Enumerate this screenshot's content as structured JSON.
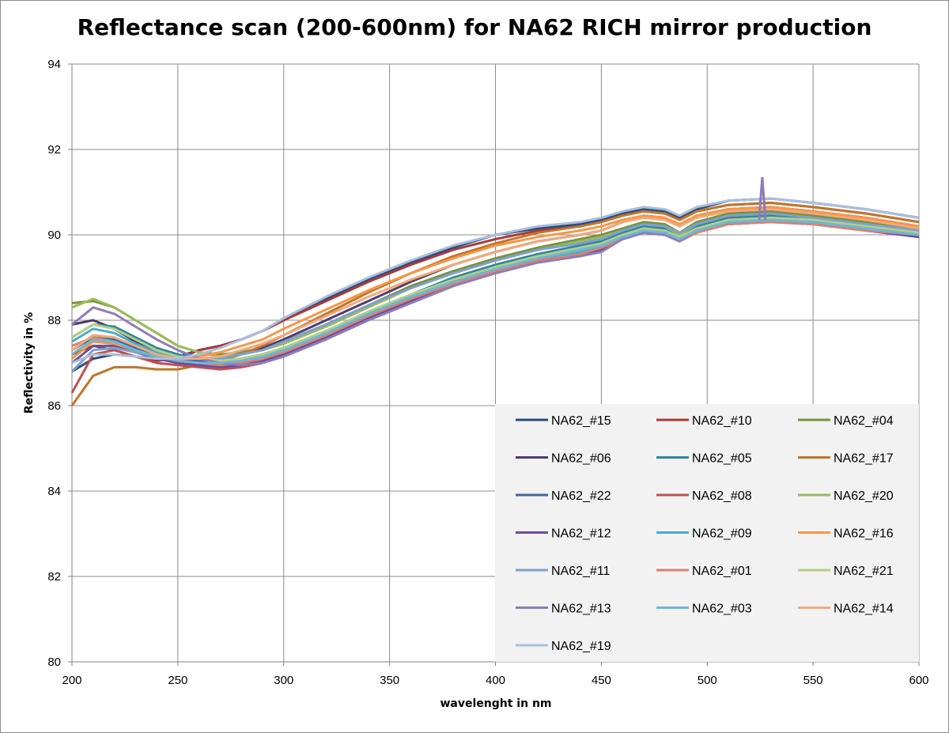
{
  "chart_data": {
    "type": "line",
    "title": "Reflectance scan (200-600nm) for NA62 RICH mirror production",
    "xlabel": "wavelenght in nm",
    "ylabel": "Reflectivity in %",
    "xlim": [
      200,
      600
    ],
    "ylim": [
      80,
      94
    ],
    "xticks": [
      200,
      250,
      300,
      350,
      400,
      450,
      500,
      550,
      600
    ],
    "yticks": [
      80,
      82,
      84,
      86,
      88,
      90,
      92,
      94
    ],
    "grid": true,
    "legend_position": "bottom-right",
    "x": [
      200,
      210,
      220,
      230,
      240,
      250,
      260,
      270,
      280,
      290,
      300,
      320,
      340,
      360,
      380,
      400,
      420,
      440,
      450,
      460,
      470,
      480,
      487,
      495,
      510,
      530,
      550,
      575,
      600
    ],
    "series": [
      {
        "name": "NA62_#15",
        "color": "#2f4b7c",
        "values": [
          86.8,
          87.1,
          87.2,
          87.15,
          87.1,
          87.15,
          87.3,
          87.4,
          87.55,
          87.75,
          88.0,
          88.5,
          88.95,
          89.35,
          89.7,
          90.0,
          90.15,
          90.25,
          90.35,
          90.5,
          90.6,
          90.55,
          90.4,
          90.6,
          90.8,
          90.85,
          90.75,
          90.6,
          90.4
        ]
      },
      {
        "name": "NA62_#10",
        "color": "#a83a3a",
        "values": [
          87.2,
          87.4,
          87.3,
          87.15,
          87.05,
          87.1,
          87.3,
          87.4,
          87.55,
          87.75,
          88.0,
          88.45,
          88.9,
          89.3,
          89.65,
          89.9,
          90.1,
          90.2,
          90.3,
          90.45,
          90.55,
          90.5,
          90.35,
          90.55,
          90.7,
          90.75,
          90.65,
          90.5,
          90.3
        ]
      },
      {
        "name": "NA62_#04",
        "color": "#77933c",
        "values": [
          88.4,
          88.45,
          88.3,
          88.0,
          87.7,
          87.4,
          87.25,
          87.2,
          87.25,
          87.35,
          87.5,
          87.9,
          88.35,
          88.8,
          89.15,
          89.45,
          89.7,
          89.9,
          90.0,
          90.15,
          90.3,
          90.25,
          90.05,
          90.3,
          90.5,
          90.55,
          90.45,
          90.3,
          90.1
        ]
      },
      {
        "name": "NA62_#06",
        "color": "#4f3b6e",
        "values": [
          87.9,
          88.0,
          87.8,
          87.5,
          87.3,
          87.15,
          87.1,
          87.1,
          87.2,
          87.35,
          87.55,
          88.0,
          88.45,
          88.9,
          89.3,
          89.6,
          89.85,
          90.0,
          90.1,
          90.3,
          90.45,
          90.4,
          90.2,
          90.45,
          90.6,
          90.65,
          90.55,
          90.4,
          90.2
        ]
      },
      {
        "name": "NA62_#05",
        "color": "#31859c",
        "values": [
          87.6,
          87.9,
          87.85,
          87.6,
          87.35,
          87.2,
          87.1,
          87.05,
          87.1,
          87.2,
          87.35,
          87.75,
          88.2,
          88.6,
          89.0,
          89.3,
          89.55,
          89.75,
          89.85,
          90.05,
          90.2,
          90.15,
          89.95,
          90.2,
          90.4,
          90.45,
          90.35,
          90.2,
          90.05
        ]
      },
      {
        "name": "NA62_#17",
        "color": "#c0752a",
        "values": [
          86.0,
          86.7,
          86.9,
          86.9,
          86.85,
          86.85,
          86.95,
          87.05,
          87.2,
          87.4,
          87.65,
          88.15,
          88.65,
          89.1,
          89.5,
          89.8,
          90.05,
          90.2,
          90.3,
          90.45,
          90.55,
          90.5,
          90.35,
          90.55,
          90.7,
          90.75,
          90.65,
          90.5,
          90.3
        ]
      },
      {
        "name": "NA62_#22",
        "color": "#3a67a4",
        "values": [
          87.3,
          87.6,
          87.55,
          87.35,
          87.2,
          87.1,
          87.05,
          87.05,
          87.1,
          87.2,
          87.35,
          87.75,
          88.15,
          88.55,
          88.95,
          89.25,
          89.5,
          89.7,
          89.8,
          90.0,
          90.15,
          90.1,
          89.95,
          90.15,
          90.35,
          90.4,
          90.3,
          90.15,
          90.0
        ]
      },
      {
        "name": "NA62_#08",
        "color": "#c0504d",
        "values": [
          86.3,
          87.2,
          87.3,
          87.15,
          87.0,
          86.95,
          86.9,
          86.85,
          86.9,
          87.0,
          87.2,
          87.6,
          88.05,
          88.5,
          88.9,
          89.2,
          89.45,
          89.6,
          89.7,
          89.95,
          90.05,
          90.0,
          89.85,
          90.1,
          90.3,
          90.35,
          90.3,
          90.15,
          90.0
        ]
      },
      {
        "name": "NA62_#20",
        "color": "#9bbb59",
        "values": [
          88.3,
          88.5,
          88.3,
          88.0,
          87.7,
          87.4,
          87.25,
          87.15,
          87.2,
          87.3,
          87.45,
          87.85,
          88.3,
          88.75,
          89.1,
          89.4,
          89.65,
          89.85,
          89.95,
          90.1,
          90.25,
          90.2,
          90.0,
          90.25,
          90.45,
          90.5,
          90.4,
          90.25,
          90.05
        ]
      },
      {
        "name": "NA62_#12",
        "color": "#6b4f9a",
        "values": [
          87.0,
          87.4,
          87.4,
          87.25,
          87.1,
          87.0,
          86.95,
          86.9,
          86.95,
          87.05,
          87.2,
          87.6,
          88.05,
          88.45,
          88.85,
          89.15,
          89.4,
          89.55,
          89.65,
          89.9,
          90.05,
          90.0,
          89.85,
          90.1,
          90.25,
          90.3,
          90.25,
          90.1,
          89.95
        ]
      },
      {
        "name": "NA62_#09",
        "color": "#4bacc6",
        "values": [
          87.5,
          87.8,
          87.7,
          87.45,
          87.25,
          87.15,
          87.1,
          87.05,
          87.1,
          87.2,
          87.3,
          87.7,
          88.15,
          88.55,
          88.9,
          89.2,
          89.45,
          89.6,
          89.75,
          89.95,
          90.1,
          90.05,
          89.9,
          90.1,
          90.3,
          90.35,
          90.3,
          90.15,
          90.0
        ]
      },
      {
        "name": "NA62_#16",
        "color": "#f79646",
        "values": [
          87.1,
          87.5,
          87.45,
          87.3,
          87.15,
          87.1,
          87.15,
          87.25,
          87.4,
          87.55,
          87.8,
          88.25,
          88.7,
          89.1,
          89.45,
          89.75,
          89.95,
          90.1,
          90.2,
          90.35,
          90.45,
          90.4,
          90.25,
          90.45,
          90.6,
          90.65,
          90.55,
          90.4,
          90.2
        ]
      },
      {
        "name": "NA62_#11",
        "color": "#7f9fcf",
        "values": [
          86.8,
          87.3,
          87.35,
          87.25,
          87.15,
          87.1,
          87.1,
          87.1,
          87.2,
          87.3,
          87.5,
          87.9,
          88.35,
          88.75,
          89.1,
          89.4,
          89.65,
          89.8,
          89.9,
          90.1,
          90.25,
          90.2,
          90.05,
          90.25,
          90.45,
          90.5,
          90.4,
          90.25,
          90.1
        ]
      },
      {
        "name": "NA62_#01",
        "color": "#d9826f",
        "values": [
          87.4,
          87.6,
          87.5,
          87.3,
          87.15,
          87.05,
          87.0,
          86.95,
          87.0,
          87.1,
          87.25,
          87.65,
          88.1,
          88.5,
          88.85,
          89.15,
          89.4,
          89.55,
          89.7,
          89.9,
          90.05,
          90.0,
          89.85,
          90.05,
          90.25,
          90.3,
          90.25,
          90.1,
          90.0
        ]
      },
      {
        "name": "NA62_#21",
        "color": "#b3cf87",
        "values": [
          87.6,
          87.9,
          87.8,
          87.55,
          87.3,
          87.15,
          87.1,
          87.05,
          87.1,
          87.2,
          87.35,
          87.75,
          88.2,
          88.6,
          88.95,
          89.25,
          89.5,
          89.7,
          89.8,
          90.0,
          90.15,
          90.1,
          89.95,
          90.15,
          90.35,
          90.4,
          90.35,
          90.2,
          90.05
        ]
      },
      {
        "name": "NA62_#13",
        "color": "#8e7cb8",
        "values": [
          87.9,
          88.3,
          88.15,
          87.85,
          87.55,
          87.3,
          87.1,
          87.0,
          86.95,
          87.0,
          87.15,
          87.55,
          88.0,
          88.4,
          88.8,
          89.1,
          89.35,
          89.5,
          89.6,
          89.9,
          90.05,
          90.0,
          89.85,
          90.1,
          90.3,
          90.35,
          90.3,
          90.15,
          90.0
        ]
      },
      {
        "name": "NA62_#03",
        "color": "#6cb8d6",
        "values": [
          87.2,
          87.55,
          87.5,
          87.3,
          87.15,
          87.05,
          87.0,
          87.0,
          87.05,
          87.15,
          87.3,
          87.7,
          88.15,
          88.55,
          88.9,
          89.2,
          89.45,
          89.65,
          89.75,
          89.95,
          90.1,
          90.05,
          89.9,
          90.1,
          90.3,
          90.35,
          90.3,
          90.15,
          90.0
        ]
      },
      {
        "name": "NA62_#14",
        "color": "#f4a87a",
        "values": [
          87.3,
          87.65,
          87.6,
          87.4,
          87.2,
          87.1,
          87.1,
          87.15,
          87.3,
          87.45,
          87.65,
          88.1,
          88.55,
          88.95,
          89.3,
          89.6,
          89.85,
          90.0,
          90.1,
          90.3,
          90.4,
          90.35,
          90.2,
          90.4,
          90.55,
          90.6,
          90.5,
          90.35,
          90.15
        ]
      },
      {
        "name": "NA62_#19",
        "color": "#a9bfdc",
        "values": [
          87.0,
          87.2,
          87.2,
          87.15,
          87.1,
          87.1,
          87.2,
          87.35,
          87.55,
          87.75,
          88.05,
          88.55,
          89.0,
          89.4,
          89.75,
          90.0,
          90.2,
          90.3,
          90.4,
          90.55,
          90.65,
          90.6,
          90.45,
          90.65,
          90.8,
          90.85,
          90.75,
          90.6,
          90.4
        ]
      }
    ],
    "annotations": [
      {
        "series": "NA62_#13",
        "note": "narrow spike",
        "x": 526,
        "y": 91.35
      }
    ]
  }
}
